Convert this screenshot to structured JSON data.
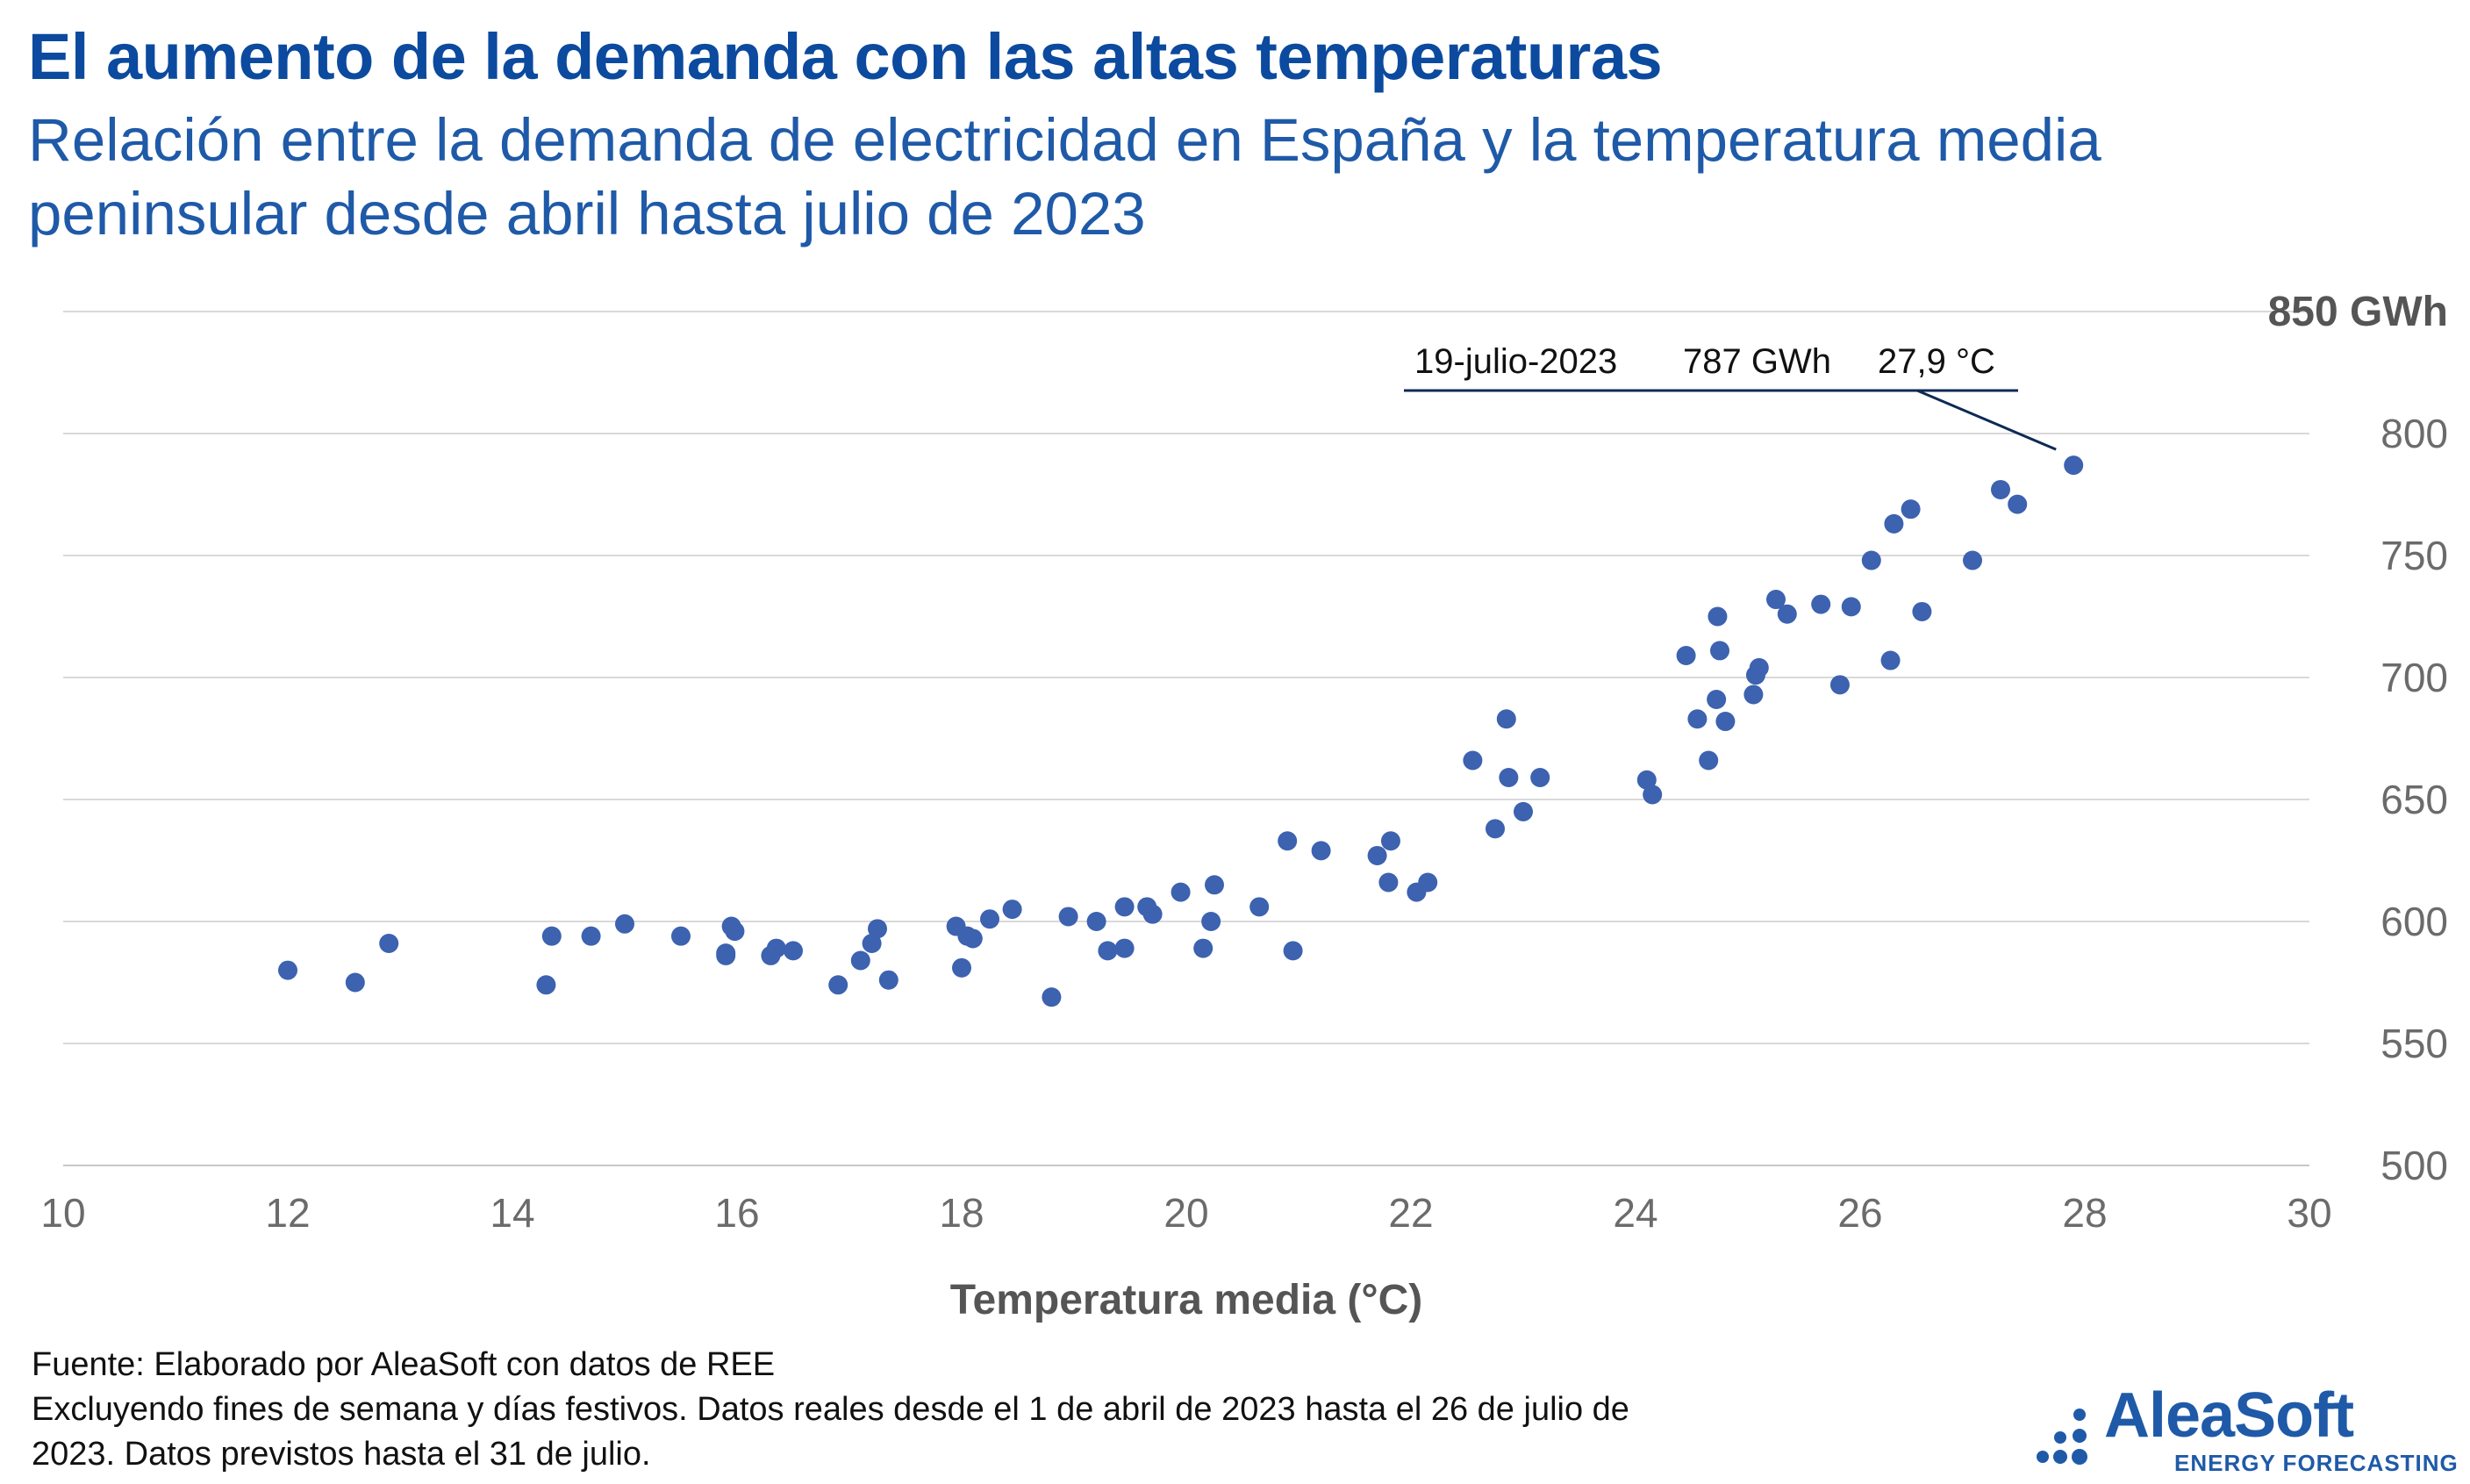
{
  "chart_data": {
    "type": "scatter",
    "title": "El aumento de la demanda con las altas temperaturas",
    "subtitle": "Relación entre la demanda de electricidad en España y la temperatura media peninsular desde abril hasta julio de 2023",
    "xlabel": "Temperatura media (°C)",
    "xlim": [
      10,
      30
    ],
    "ylim": [
      500,
      850
    ],
    "x_ticks": [
      "10",
      "12",
      "14",
      "16",
      "18",
      "20",
      "22",
      "24",
      "26",
      "28",
      "30"
    ],
    "y_ticks": [
      "500",
      "550",
      "600",
      "650",
      "700",
      "750",
      "800",
      "850 GWh"
    ],
    "x_tick_values": [
      10,
      12,
      14,
      16,
      18,
      20,
      22,
      24,
      26,
      28,
      30
    ],
    "y_tick_values": [
      500,
      550,
      600,
      650,
      700,
      750,
      800,
      850
    ],
    "grid": true,
    "point_color": "#3c62b0",
    "annotation": {
      "date": "19-julio-2023",
      "value": "787 GWh",
      "temp": "27,9 °C",
      "point": [
        27.9,
        787
      ]
    },
    "points": [
      [
        12.0,
        580
      ],
      [
        12.6,
        575
      ],
      [
        12.9,
        591
      ],
      [
        14.3,
        574
      ],
      [
        14.35,
        594
      ],
      [
        14.7,
        594
      ],
      [
        15.0,
        599
      ],
      [
        15.5,
        594
      ],
      [
        15.9,
        587
      ],
      [
        15.9,
        586
      ],
      [
        15.95,
        598
      ],
      [
        15.98,
        596
      ],
      [
        16.3,
        586
      ],
      [
        16.35,
        589
      ],
      [
        16.5,
        588
      ],
      [
        16.9,
        574
      ],
      [
        17.1,
        584
      ],
      [
        17.2,
        591
      ],
      [
        17.25,
        597
      ],
      [
        17.35,
        576
      ],
      [
        17.95,
        598
      ],
      [
        18.0,
        581
      ],
      [
        18.05,
        594
      ],
      [
        18.1,
        593
      ],
      [
        18.25,
        601
      ],
      [
        18.45,
        605
      ],
      [
        18.8,
        569
      ],
      [
        18.95,
        602
      ],
      [
        19.2,
        600
      ],
      [
        19.3,
        588
      ],
      [
        19.45,
        589
      ],
      [
        19.45,
        606
      ],
      [
        19.65,
        606
      ],
      [
        19.7,
        603
      ],
      [
        19.95,
        612
      ],
      [
        20.15,
        589
      ],
      [
        20.22,
        600
      ],
      [
        20.25,
        615
      ],
      [
        20.65,
        606
      ],
      [
        20.9,
        633
      ],
      [
        20.95,
        588
      ],
      [
        21.2,
        629
      ],
      [
        21.7,
        627
      ],
      [
        21.8,
        616
      ],
      [
        21.82,
        633
      ],
      [
        22.05,
        612
      ],
      [
        22.15,
        616
      ],
      [
        22.55,
        666
      ],
      [
        22.75,
        638
      ],
      [
        22.85,
        683
      ],
      [
        22.87,
        659
      ],
      [
        23.0,
        645
      ],
      [
        23.15,
        659
      ],
      [
        24.1,
        658
      ],
      [
        24.15,
        652
      ],
      [
        24.45,
        709
      ],
      [
        24.55,
        683
      ],
      [
        24.65,
        666
      ],
      [
        24.72,
        691
      ],
      [
        24.73,
        725
      ],
      [
        24.75,
        711
      ],
      [
        24.8,
        682
      ],
      [
        25.05,
        693
      ],
      [
        25.07,
        701
      ],
      [
        25.1,
        704
      ],
      [
        25.25,
        732
      ],
      [
        25.35,
        726
      ],
      [
        25.65,
        730
      ],
      [
        25.82,
        697
      ],
      [
        25.92,
        729
      ],
      [
        26.1,
        748
      ],
      [
        26.27,
        707
      ],
      [
        26.3,
        763
      ],
      [
        26.45,
        769
      ],
      [
        26.55,
        727
      ],
      [
        27.0,
        748
      ],
      [
        27.25,
        777
      ],
      [
        27.4,
        771
      ],
      [
        27.9,
        787
      ]
    ]
  },
  "footer": {
    "line1": "Fuente: Elaborado por AleaSoft con datos de REE",
    "line2": "Excluyendo fines de semana y días festivos. Datos reales desde el 1 de abril de 2023 hasta el 26 de julio de 2023. Datos previstos hasta el 31 de julio."
  },
  "logo": {
    "name": "AleaSoft",
    "tagline": "ENERGY FORECASTING",
    "color": "#1f5aa8"
  }
}
